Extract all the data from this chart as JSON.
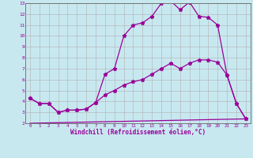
{
  "line1_x": [
    0,
    1,
    2,
    3,
    4,
    5,
    6,
    7,
    8,
    9,
    10,
    11,
    12,
    13,
    14,
    15,
    16,
    17,
    18,
    19,
    20,
    21,
    22,
    23
  ],
  "line1_y": [
    4.3,
    3.8,
    3.8,
    3.0,
    3.2,
    3.2,
    3.3,
    3.9,
    6.5,
    7.0,
    10.0,
    11.0,
    11.2,
    11.8,
    13.0,
    13.2,
    12.4,
    13.1,
    11.8,
    11.7,
    11.0,
    6.4,
    3.8,
    2.4
  ],
  "line2_x": [
    0,
    1,
    2,
    3,
    4,
    5,
    6,
    7,
    8,
    9,
    10,
    11,
    12,
    13,
    14,
    15,
    16,
    17,
    18,
    19,
    20,
    21,
    22,
    23
  ],
  "line2_y": [
    4.3,
    3.8,
    3.8,
    3.0,
    3.2,
    3.2,
    3.3,
    3.9,
    4.6,
    5.0,
    5.5,
    5.8,
    6.0,
    6.5,
    7.0,
    7.5,
    7.0,
    7.5,
    7.8,
    7.8,
    7.6,
    6.4,
    3.8,
    2.4
  ],
  "line3_x": [
    0,
    23
  ],
  "line3_y": [
    2.0,
    2.4
  ],
  "line_color": "#990099",
  "bg_color": "#c8e8f0",
  "grid_color": "#b0b0b0",
  "xlabel": "Windchill (Refroidissement éolien,°C)",
  "xlim": [
    -0.5,
    23.5
  ],
  "ylim": [
    2,
    13
  ],
  "yticks": [
    2,
    3,
    4,
    5,
    6,
    7,
    8,
    9,
    10,
    11,
    12,
    13
  ],
  "xticks": [
    0,
    1,
    2,
    3,
    4,
    5,
    6,
    7,
    8,
    9,
    10,
    11,
    12,
    13,
    14,
    15,
    16,
    17,
    18,
    19,
    20,
    21,
    22,
    23
  ],
  "marker": "*",
  "marker_size": 3.5,
  "line_width": 0.9
}
